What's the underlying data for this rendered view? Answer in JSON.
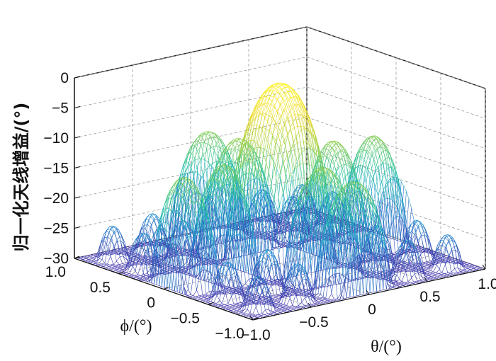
{
  "chart_data": {
    "type": "surface3d",
    "title": "",
    "zlabel": "归一化天线增益/(°)",
    "xlabel": "θ/(°)",
    "ylabel": "ϕ/(°)",
    "xlim": [
      -1.0,
      1.0
    ],
    "ylim": [
      -1.0,
      1.0
    ],
    "zlim": [
      -30,
      0
    ],
    "z_ticks": [
      "0",
      "−5",
      "−10",
      "−15",
      "−20",
      "−25",
      "−30"
    ],
    "x_ticks": [
      "−1.0",
      "−0.5",
      "0",
      "0.5",
      "1.0"
    ],
    "y_ticks": [
      "1.0",
      "0.5",
      "0",
      "−0.5",
      "−1.0"
    ],
    "grid": true,
    "colormap": [
      "#3f33a8",
      "#1e8fd2",
      "#22c0a8",
      "#86cc48",
      "#e9d82e",
      "#fdf31f"
    ],
    "surface": {
      "description_of_shape": "array-factor peaks",
      "peak_grid": 4,
      "floor_db": -30
    }
  }
}
